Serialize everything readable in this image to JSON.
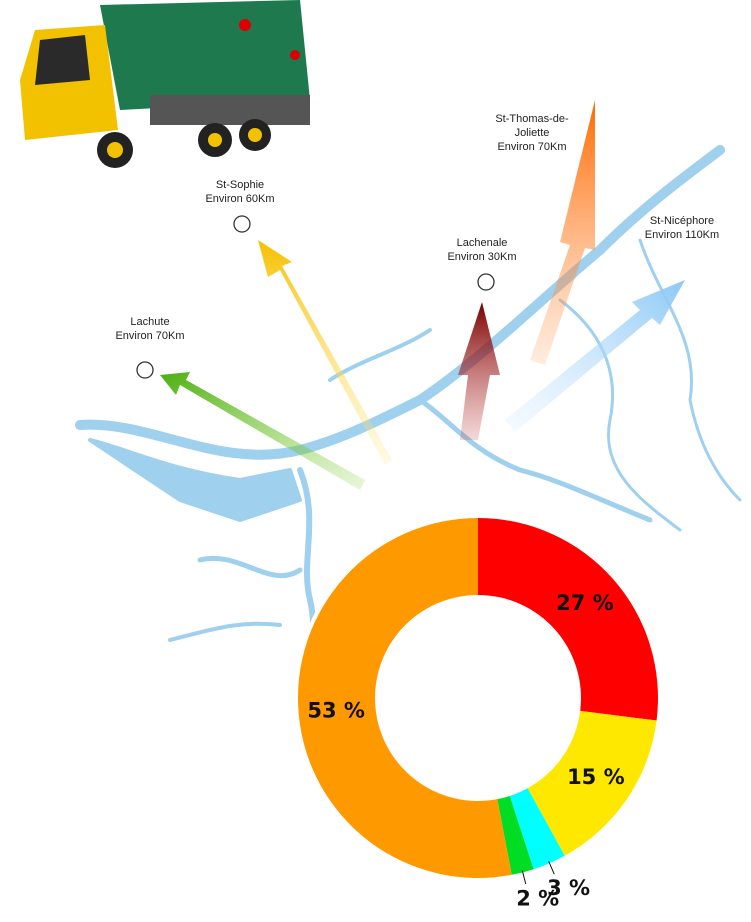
{
  "chart_data": {
    "type": "donut",
    "categories": [
      null,
      null,
      null,
      null,
      null
    ],
    "values": [
      27,
      15,
      3,
      2,
      53
    ],
    "value_labels": [
      "27 %",
      "15 %",
      "3 %",
      "2 %",
      "53 %"
    ],
    "colors": [
      "#ff0000",
      "#ffe800",
      "#00ffff",
      "#00dd22",
      "#ff9900"
    ]
  },
  "locations": [
    {
      "name_lines": [
        "Lachute"
      ],
      "distance": "Environ 70Km"
    },
    {
      "name_lines": [
        "St-Sophie"
      ],
      "distance": "Environ 60Km"
    },
    {
      "name_lines": [
        "Lachenale"
      ],
      "distance": "Environ 30Km"
    },
    {
      "name_lines": [
        "St-Thomas-de-",
        "Joliette"
      ],
      "distance": "Environ 70Km"
    },
    {
      "name_lines": [
        "St-Nicéphore"
      ],
      "distance": "Environ 110Km"
    }
  ]
}
